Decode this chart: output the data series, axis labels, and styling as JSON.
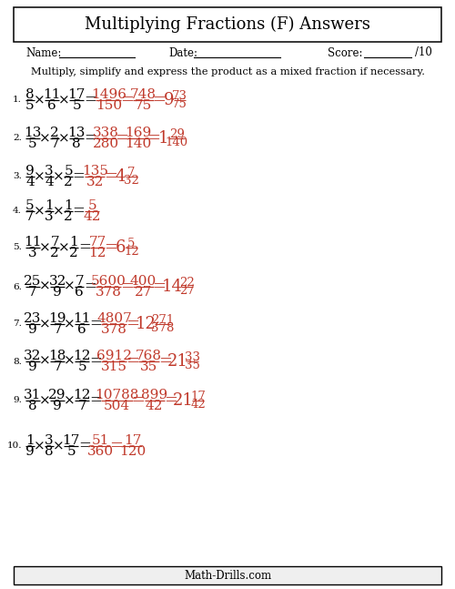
{
  "title": "Multiplying Fractions (F) Answers",
  "instruction": "Multiply, simplify and express the product as a mixed fraction if necessary.",
  "name_label": "Name:",
  "date_label": "Date:",
  "score_label": "Score:",
  "score_denom": "/10",
  "footer": "Math-Drills.com",
  "bg_color": "#ffffff",
  "border_color": "#000000",
  "text_color": "#000000",
  "red_color": "#c0392b",
  "problems": [
    {
      "num": "1.",
      "f1n": "8",
      "f1d": "5",
      "f2n": "11",
      "f2d": "6",
      "f3n": "17",
      "f3d": "5",
      "r1n": "1496",
      "r1d": "150",
      "r2n": "748",
      "r2d": "75",
      "mixed_whole": "9",
      "mixed_n": "73",
      "mixed_d": "75",
      "has_mixed": true,
      "has_r2": true
    },
    {
      "num": "2.",
      "f1n": "13",
      "f1d": "5",
      "f2n": "2",
      "f2d": "7",
      "f3n": "13",
      "f3d": "8",
      "r1n": "338",
      "r1d": "280",
      "r2n": "169",
      "r2d": "140",
      "mixed_whole": "1",
      "mixed_n": "29",
      "mixed_d": "140",
      "has_mixed": true,
      "has_r2": true
    },
    {
      "num": "3.",
      "f1n": "9",
      "f1d": "4",
      "f2n": "3",
      "f2d": "4",
      "f3n": "5",
      "f3d": "2",
      "r1n": "135",
      "r1d": "32",
      "r2n": "",
      "r2d": "",
      "mixed_whole": "4",
      "mixed_n": "7",
      "mixed_d": "32",
      "has_mixed": true,
      "has_r2": false
    },
    {
      "num": "4.",
      "f1n": "5",
      "f1d": "7",
      "f2n": "1",
      "f2d": "3",
      "f3n": "1",
      "f3d": "2",
      "r1n": "5",
      "r1d": "42",
      "r2n": "",
      "r2d": "",
      "mixed_whole": "",
      "mixed_n": "",
      "mixed_d": "",
      "has_mixed": false,
      "has_r2": false
    },
    {
      "num": "5.",
      "f1n": "11",
      "f1d": "3",
      "f2n": "7",
      "f2d": "2",
      "f3n": "1",
      "f3d": "2",
      "r1n": "77",
      "r1d": "12",
      "r2n": "",
      "r2d": "",
      "mixed_whole": "6",
      "mixed_n": "5",
      "mixed_d": "12",
      "has_mixed": true,
      "has_r2": false
    },
    {
      "num": "6.",
      "f1n": "25",
      "f1d": "7",
      "f2n": "32",
      "f2d": "9",
      "f3n": "7",
      "f3d": "6",
      "r1n": "5600",
      "r1d": "378",
      "r2n": "400",
      "r2d": "27",
      "mixed_whole": "14",
      "mixed_n": "22",
      "mixed_d": "27",
      "has_mixed": true,
      "has_r2": true
    },
    {
      "num": "7.",
      "f1n": "23",
      "f1d": "9",
      "f2n": "19",
      "f2d": "7",
      "f3n": "11",
      "f3d": "6",
      "r1n": "4807",
      "r1d": "378",
      "r2n": "",
      "r2d": "",
      "mixed_whole": "12",
      "mixed_n": "271",
      "mixed_d": "378",
      "has_mixed": true,
      "has_r2": false
    },
    {
      "num": "8.",
      "f1n": "32",
      "f1d": "9",
      "f2n": "18",
      "f2d": "7",
      "f3n": "12",
      "f3d": "5",
      "r1n": "6912",
      "r1d": "315",
      "r2n": "768",
      "r2d": "35",
      "mixed_whole": "21",
      "mixed_n": "33",
      "mixed_d": "35",
      "has_mixed": true,
      "has_r2": true
    },
    {
      "num": "9.",
      "f1n": "31",
      "f1d": "8",
      "f2n": "29",
      "f2d": "9",
      "f3n": "12",
      "f3d": "7",
      "r1n": "10788",
      "r1d": "504",
      "r2n": "899",
      "r2d": "42",
      "mixed_whole": "21",
      "mixed_n": "17",
      "mixed_d": "42",
      "has_mixed": true,
      "has_r2": true
    },
    {
      "num": "10.",
      "f1n": "1",
      "f1d": "9",
      "f2n": "3",
      "f2d": "8",
      "f3n": "17",
      "f3d": "5",
      "r1n": "51",
      "r1d": "360",
      "r2n": "17",
      "r2d": "120",
      "mixed_whole": "",
      "mixed_n": "",
      "mixed_d": "",
      "has_mixed": false,
      "has_r2": true
    }
  ]
}
